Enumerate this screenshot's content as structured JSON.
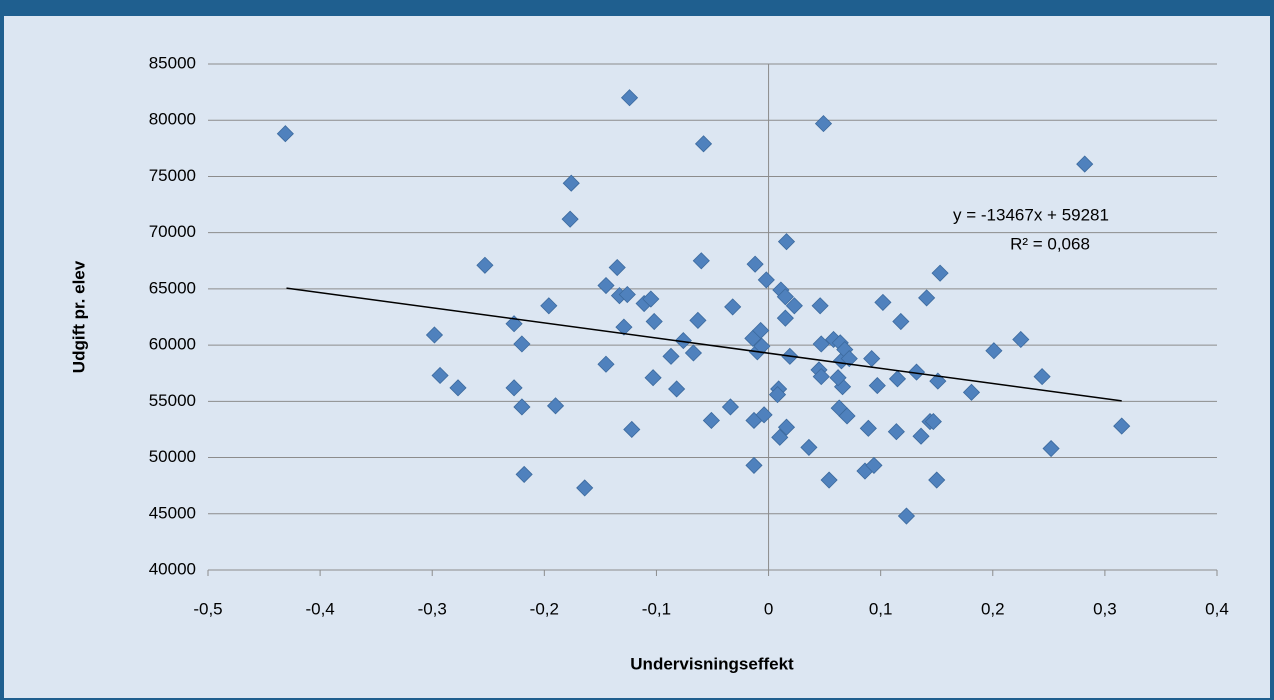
{
  "chart_data": {
    "type": "scatter",
    "x_label": "Undervisningseffekt",
    "y_label": "Udgift pr. elev",
    "annotations": [
      "y = -13467x + 59281",
      "R² = 0,068"
    ],
    "color": "#4f81bd",
    "trendline": {
      "x": [
        -0.43,
        0.315
      ],
      "y": [
        65072,
        55039
      ],
      "color": "#000000"
    },
    "xlim": [
      -0.5,
      0.4
    ],
    "xticks": [
      {
        "value": -0.5,
        "label": "-0,5"
      },
      {
        "value": -0.4,
        "label": "-0,4"
      },
      {
        "value": -0.3,
        "label": "-0,3"
      },
      {
        "value": -0.2,
        "label": "-0,2"
      },
      {
        "value": -0.1,
        "label": "-0,1"
      },
      0,
      {
        "value": 0.1,
        "label": "0,1"
      },
      {
        "value": 0.2,
        "label": "0,2"
      },
      {
        "value": 0.3,
        "label": "0,3"
      },
      {
        "value": 0.4,
        "label": "0,4"
      }
    ],
    "ylim": [
      40000,
      85000
    ],
    "yticks": [
      40000,
      45000,
      50000,
      55000,
      60000,
      65000,
      70000,
      75000,
      80000,
      85000
    ],
    "grid": true,
    "x": [
      -0.431,
      -0.298,
      -0.293,
      -0.277,
      -0.253,
      -0.227,
      -0.227,
      -0.22,
      -0.22,
      -0.218,
      -0.196,
      -0.19,
      -0.176,
      -0.177,
      -0.164,
      -0.145,
      -0.145,
      -0.135,
      -0.133,
      -0.126,
      -0.129,
      -0.124,
      -0.122,
      -0.111,
      -0.105,
      -0.102,
      -0.103,
      -0.087,
      -0.082,
      -0.076,
      -0.067,
      -0.063,
      -0.06,
      -0.058,
      -0.051,
      -0.034,
      -0.032,
      -0.012,
      -0.013,
      -0.013,
      -0.014,
      -0.01,
      -0.007,
      -0.006,
      -0.004,
      -0.002,
      0.009,
      0.008,
      0.01,
      0.011,
      0.015,
      0.015,
      0.016,
      0.016,
      0.019,
      0.023,
      0.036,
      0.046,
      0.047,
      0.045,
      0.047,
      0.049,
      0.054,
      0.058,
      0.063,
      0.065,
      0.064,
      0.068,
      0.07,
      0.072,
      0.066,
      0.062,
      0.086,
      0.089,
      0.092,
      0.094,
      0.097,
      0.102,
      0.123,
      0.115,
      0.114,
      0.118,
      0.132,
      0.136,
      0.141,
      0.144,
      0.147,
      0.15,
      0.151,
      0.153,
      0.181,
      0.201,
      0.225,
      0.244,
      0.252,
      0.282,
      0.315
    ],
    "y": [
      78800,
      60900,
      57300,
      56200,
      67100,
      61900,
      56200,
      60100,
      54500,
      48500,
      63500,
      54600,
      74400,
      71200,
      47300,
      58300,
      65300,
      66900,
      64400,
      64500,
      61600,
      82000,
      52500,
      63700,
      64100,
      62100,
      57100,
      59000,
      56100,
      60400,
      59300,
      62200,
      67500,
      77900,
      53300,
      54500,
      63400,
      67200,
      49300,
      53300,
      60600,
      59400,
      61300,
      59900,
      53800,
      65800,
      56100,
      55600,
      51800,
      64900,
      64300,
      62400,
      52700,
      69200,
      59000,
      63500,
      50900,
      63500,
      60100,
      57800,
      57200,
      79700,
      48000,
      60500,
      54400,
      58600,
      60200,
      59600,
      53700,
      58800,
      56300,
      57100,
      48800,
      52600,
      58800,
      49300,
      56400,
      63800,
      44800,
      57000,
      52300,
      62100,
      57600,
      51900,
      64200,
      53200,
      53200,
      48000,
      56800,
      66400,
      55800,
      59500,
      60500,
      57200,
      50800,
      76100,
      52800
    ]
  }
}
